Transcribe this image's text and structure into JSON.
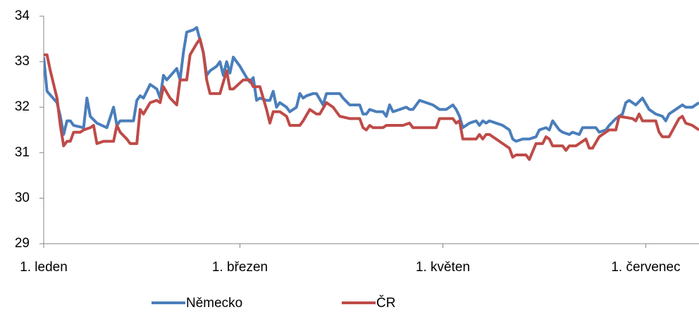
{
  "chart_data": {
    "type": "line",
    "xlim": [
      0,
      197
    ],
    "xticks": [
      {
        "value": 0,
        "label": "1. leden"
      },
      {
        "value": 59,
        "label": "1. březen"
      },
      {
        "value": 120,
        "label": "1. květen"
      },
      {
        "value": 181,
        "label": "1. červenec"
      }
    ],
    "ylim": [
      29,
      34
    ],
    "yticks": [
      29,
      30,
      31,
      32,
      33,
      34
    ],
    "grid": false,
    "legend": "bottom",
    "series": [
      {
        "name": "Německo",
        "color": "#4a7ebb",
        "x": [
          0,
          1,
          4,
          5,
          6,
          7,
          8,
          9,
          12,
          13,
          14,
          16,
          19,
          21,
          22,
          23,
          27,
          28,
          29,
          30,
          32,
          34,
          35,
          36,
          37,
          40,
          41,
          42,
          43,
          45,
          46,
          48,
          49,
          50,
          52,
          53,
          54,
          55,
          56,
          57,
          59,
          61,
          62,
          63,
          64,
          65,
          67,
          68,
          69,
          70,
          71,
          73,
          74,
          76,
          77,
          78,
          79,
          81,
          82,
          84,
          85,
          87,
          89,
          90,
          92,
          94,
          95,
          96,
          97,
          98,
          100,
          102,
          103,
          104,
          105,
          107,
          109,
          110,
          111,
          113,
          115,
          117,
          118,
          119,
          121,
          123,
          124,
          125,
          126,
          128,
          130,
          131,
          132,
          133,
          134,
          136,
          138,
          140,
          141,
          142,
          144,
          146,
          148,
          149,
          151,
          152,
          153,
          155,
          156,
          158,
          159,
          161,
          162,
          164,
          166,
          167,
          169,
          170,
          172,
          173,
          174,
          175,
          176,
          178,
          180,
          182,
          184,
          186,
          187,
          188,
          190,
          192,
          193,
          195,
          197
        ],
        "values": [
          33.1,
          32.35,
          32.1,
          31.8,
          31.4,
          31.7,
          31.7,
          31.6,
          31.55,
          32.2,
          31.8,
          31.65,
          31.55,
          32.0,
          31.6,
          31.7,
          31.7,
          32.15,
          32.25,
          32.2,
          32.5,
          32.4,
          32.2,
          32.7,
          32.6,
          32.85,
          32.6,
          33.2,
          33.65,
          33.7,
          33.75,
          33.2,
          32.7,
          32.8,
          32.9,
          33.0,
          32.7,
          33.0,
          32.75,
          33.1,
          32.9,
          32.65,
          32.55,
          32.65,
          32.15,
          32.2,
          32.15,
          32.15,
          32.35,
          32.0,
          32.1,
          32.0,
          31.9,
          32.0,
          32.3,
          32.2,
          32.25,
          32.3,
          32.3,
          32.05,
          32.3,
          32.3,
          32.3,
          32.2,
          32.05,
          32.05,
          32.05,
          31.85,
          31.85,
          31.95,
          31.9,
          31.9,
          31.8,
          32.05,
          31.9,
          31.95,
          32.0,
          31.95,
          31.95,
          32.15,
          32.1,
          32.05,
          32.0,
          31.95,
          31.95,
          32.05,
          31.95,
          31.8,
          31.55,
          31.65,
          31.7,
          31.6,
          31.7,
          31.65,
          31.7,
          31.65,
          31.6,
          31.5,
          31.3,
          31.25,
          31.3,
          31.3,
          31.35,
          31.5,
          31.55,
          31.5,
          31.7,
          31.5,
          31.45,
          31.4,
          31.45,
          31.4,
          31.55,
          31.55,
          31.55,
          31.45,
          31.5,
          31.6,
          31.75,
          31.8,
          31.85,
          32.1,
          32.15,
          32.05,
          32.2,
          31.95,
          31.85,
          31.8,
          31.7,
          31.85,
          31.95,
          32.05,
          32.0,
          32.0,
          32.1
        ]
      },
      {
        "name": "ČR",
        "color": "#be4b48",
        "x": [
          0,
          1,
          2,
          4,
          5,
          6,
          7,
          8,
          9,
          11,
          12,
          14,
          15,
          16,
          18,
          20,
          21,
          22,
          23,
          25,
          26,
          28,
          29,
          30,
          32,
          34,
          35,
          36,
          38,
          40,
          41,
          43,
          44,
          46,
          47,
          48,
          49,
          50,
          53,
          55,
          56,
          57,
          60,
          62,
          63,
          65,
          66,
          67,
          68,
          69,
          71,
          73,
          74,
          77,
          78,
          80,
          82,
          83,
          85,
          87,
          89,
          92,
          95,
          96,
          97,
          98,
          99,
          102,
          103,
          106,
          108,
          110,
          111,
          118,
          119,
          123,
          124,
          125,
          126,
          130,
          131,
          132,
          133,
          134,
          137,
          140,
          141,
          142,
          145,
          146,
          148,
          150,
          151,
          152,
          153,
          156,
          157,
          158,
          160,
          161,
          163,
          164,
          165,
          167,
          169,
          170,
          172,
          173,
          177,
          178,
          179,
          180,
          184,
          185,
          186,
          188,
          191,
          192,
          193,
          195,
          196,
          197
        ],
        "values": [
          33.15,
          33.15,
          32.8,
          32.2,
          31.6,
          31.15,
          31.25,
          31.25,
          31.45,
          31.45,
          31.5,
          31.55,
          31.6,
          31.2,
          31.25,
          31.25,
          31.25,
          31.6,
          31.45,
          31.3,
          31.2,
          31.2,
          31.95,
          31.85,
          32.1,
          32.15,
          32.1,
          32.45,
          32.2,
          32.05,
          32.6,
          32.6,
          33.15,
          33.4,
          33.5,
          33.2,
          32.6,
          32.3,
          32.3,
          32.8,
          32.4,
          32.4,
          32.6,
          32.6,
          32.45,
          32.45,
          32.2,
          31.95,
          31.65,
          31.9,
          31.9,
          31.8,
          31.6,
          31.6,
          31.7,
          31.95,
          31.85,
          31.85,
          32.1,
          32.0,
          31.8,
          31.75,
          31.75,
          31.55,
          31.5,
          31.6,
          31.55,
          31.55,
          31.6,
          31.6,
          31.6,
          31.65,
          31.55,
          31.55,
          31.75,
          31.75,
          31.65,
          31.7,
          31.3,
          31.3,
          31.4,
          31.3,
          31.4,
          31.4,
          31.25,
          31.1,
          30.9,
          30.95,
          30.95,
          30.85,
          31.2,
          31.2,
          31.35,
          31.3,
          31.15,
          31.15,
          31.05,
          31.15,
          31.15,
          31.2,
          31.3,
          31.1,
          31.1,
          31.35,
          31.45,
          31.5,
          31.5,
          31.8,
          31.75,
          31.7,
          31.85,
          31.7,
          31.7,
          31.45,
          31.35,
          31.35,
          31.75,
          31.8,
          31.65,
          31.6,
          31.55,
          31.5
        ]
      }
    ]
  }
}
